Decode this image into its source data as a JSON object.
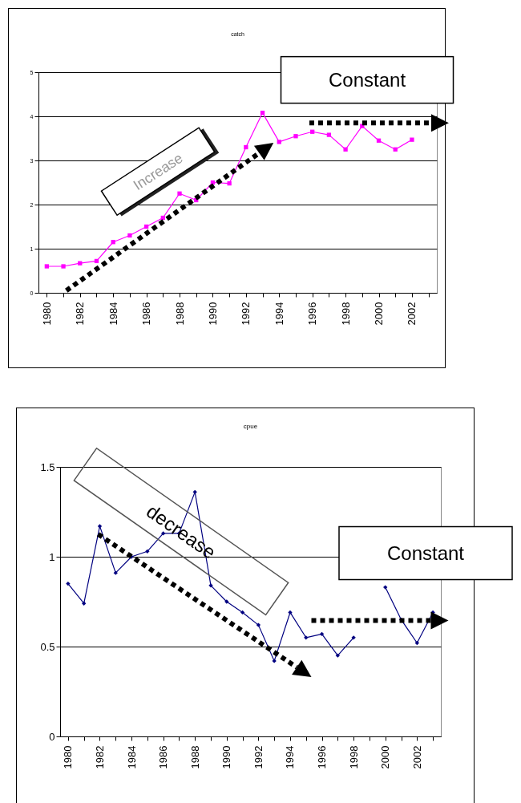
{
  "chart_data": [
    {
      "type": "line",
      "title": "catch",
      "categories": [
        "1980",
        null,
        "1982",
        null,
        "1984",
        null,
        "1986",
        null,
        "1988",
        null,
        "1990",
        null,
        "1992",
        null,
        "1994",
        null,
        "1996",
        null,
        "1998",
        null,
        "2000",
        null,
        "2002",
        null
      ],
      "series": [
        {
          "color": "#ff00ff",
          "values": [
            0.6,
            0.6,
            0.67,
            0.72,
            1.15,
            1.3,
            1.5,
            1.7,
            2.25,
            2.1,
            2.5,
            2.48,
            3.3,
            4.08,
            3.42,
            3.55,
            3.65,
            3.58,
            3.25,
            3.78,
            3.45,
            3.25,
            3.47,
            null
          ]
        }
      ],
      "ylim": [
        0,
        5
      ],
      "yticks": [
        0,
        1,
        2,
        3,
        4,
        5
      ],
      "grid": "y",
      "marker": "square",
      "annotations": [
        "Increase",
        "Constant"
      ]
    },
    {
      "type": "line",
      "title": "cpue",
      "categories": [
        "1980",
        null,
        "1982",
        null,
        "1984",
        null,
        "1986",
        null,
        "1988",
        null,
        "1990",
        null,
        "1992",
        null,
        "1994",
        null,
        "1996",
        null,
        "1998",
        null,
        "2000",
        null,
        "2002",
        null
      ],
      "series": [
        {
          "color": "#000080",
          "values": [
            0.85,
            0.74,
            1.17,
            0.91,
            1.0,
            1.03,
            1.13,
            1.13,
            1.36,
            0.84,
            0.75,
            0.69,
            0.62,
            0.42,
            0.69,
            0.55,
            0.57,
            0.45,
            0.55,
            null,
            0.83,
            0.65,
            0.52,
            0.69
          ]
        }
      ],
      "ylim": [
        0,
        1.5
      ],
      "yticks": [
        0,
        0.5,
        1,
        1.5
      ],
      "grid": "y",
      "marker": "diamond",
      "annotations": [
        "decrease",
        "Constant"
      ]
    }
  ]
}
